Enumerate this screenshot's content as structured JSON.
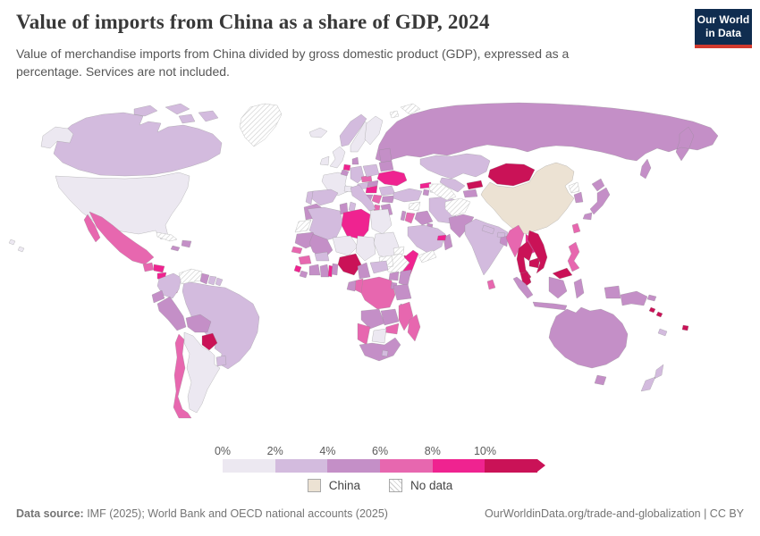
{
  "header": {
    "title": "Value of imports from China as a share of GDP, 2024",
    "subtitle": "Value of merchandise imports from China divided by gross domestic product (GDP), expressed as a percentage. Services are not included."
  },
  "logo": {
    "line1": "Our World",
    "line2": "in Data",
    "bg_color": "#102d50",
    "stripe_color": "#d23a2e"
  },
  "legend": {
    "tick_labels": [
      "0%",
      "2%",
      "4%",
      "6%",
      "8%",
      "10%"
    ],
    "band_colors": [
      "#ece8f1",
      "#d3bbde",
      "#c48fc7",
      "#e767af",
      "#ef2390",
      "#ca1257"
    ],
    "china_label": "China",
    "china_color": "#ece2d3",
    "nodata_label": "No data"
  },
  "footer": {
    "source_label": "Data source:",
    "source_text": " IMF (2025); World Bank and OECD national accounts (2025)",
    "right_text": "OurWorldinData.org/trade-and-globalization | CC BY"
  },
  "chart_data": {
    "type": "heatmap",
    "map_type": "world-choropleth",
    "title": "Value of imports from China as a share of GDP, 2024",
    "unit": "share of GDP (%)",
    "bins": [
      "0–2%",
      "2–4%",
      "4–6%",
      "6–8%",
      "8–10%",
      "10%+"
    ],
    "bin_keys": [
      "b0",
      "b1",
      "b2",
      "b3",
      "b4",
      "b5"
    ],
    "special_keys": {
      "china": "China (reference country)",
      "nodata": "No data"
    },
    "countries": {
      "greenland": "nodata",
      "canada": "b1",
      "alaska": "b0",
      "usa": "b0",
      "mexico": "b3",
      "guatemala": "b3",
      "honduras": "b4",
      "nicaragua": "b4",
      "costarica": "b2",
      "panama": "b3",
      "cuba": "nodata",
      "jamaica": "b2",
      "hispaniola": "b2",
      "colombia": "b1",
      "venezuela": "nodata",
      "guyana": "b2",
      "suriname": "b1",
      "frguiana": "b1",
      "ecuador": "b2",
      "peru": "b2",
      "brazil": "b1",
      "bolivia": "b2",
      "paraguay": "b5",
      "uruguay": "b1",
      "argentina": "b0",
      "chile": "b3",
      "iceland": "b0",
      "uk": "b0",
      "ireland": "b0",
      "norway": "b1",
      "sweden": "b0",
      "finland": "b0",
      "denmark": "b2",
      "baltics": "b2",
      "france": "b0",
      "spain": "b1",
      "portugal": "b1",
      "belgium": "b2",
      "netherlands": "b4",
      "germany": "b1",
      "switzerland": "b0",
      "austria": "b1",
      "czechia": "b3",
      "poland": "b1",
      "belarus": "b2",
      "ukraine": "b4",
      "slovakia": "b2",
      "hungary": "b4",
      "romania": "b1",
      "serbia": "b3",
      "bosnia": "b2",
      "bulgaria": "b2",
      "albania": "b3",
      "greece": "b2",
      "italy": "b1",
      "sicily": "b1",
      "sardinia": "b1",
      "russia": "b2",
      "svalbard": "nodata",
      "turkey": "b1",
      "georgia": "b4",
      "azerbaijan": "b0",
      "armenia": "b2",
      "syria": "nodata",
      "israel": "b2",
      "jordan": "b3",
      "iraq": "b2",
      "iran": "b1",
      "kuwait": "b2",
      "saudi": "b1",
      "yemen": "nodata",
      "oman": "b2",
      "uae": "b4",
      "kazakhstan": "b1",
      "uzbekistan": "b1",
      "turkmenistan": "nodata",
      "kyrgyzstan": "b5",
      "tajikistan": "b2",
      "afghanistan": "nodata",
      "pakistan": "b2",
      "india": "b1",
      "nepal": "b1",
      "bhutan": "b1",
      "bangladesh": "b2",
      "srilanka": "b3",
      "mongolia": "b5",
      "china": "china",
      "northkorea": "nodata",
      "southkorea": "b2",
      "japan": "b2",
      "taiwan": "b3",
      "myanmar": "b3",
      "thailand": "b5",
      "laos": "b4",
      "cambodia": "b5",
      "vietnam": "b5",
      "malaysia": "b5",
      "indonesia": "b2",
      "philippines": "b3",
      "png": "b2",
      "solomon": "b5",
      "fiji": "b5",
      "newcaledonia": "b1",
      "australia": "b2",
      "newzealand": "b1",
      "hawaii": "b0",
      "morocco": "b2",
      "wsahara": "nodata",
      "algeria": "b1",
      "tunisia": "b2",
      "libya": "b4",
      "egypt": "b0",
      "mauritania": "b2",
      "mali": "b2",
      "niger": "b0",
      "chad": "b0",
      "sudan": "b0",
      "ssudan": "nodata",
      "eritrea": "nodata",
      "djibouti": "b5",
      "ethiopia": "nodata",
      "somalia": "b4",
      "senegal": "b3",
      "guinea": "b3",
      "sierraleone": "b4",
      "liberia": "b2",
      "ivorycoast": "b2",
      "burkina": "b1",
      "ghana": "b2",
      "togo": "b4",
      "benin": "b2",
      "nigeria": "b5",
      "cameroon": "b2",
      "car": "b1",
      "drc": "b3",
      "congo": "b3",
      "gabon": "b2",
      "uganda": "b2",
      "kenya": "b2",
      "rwanda": "b2",
      "tanzania": "b2",
      "angola": "b2",
      "zambia": "b2",
      "malawi": "b2",
      "mozambique": "b3",
      "zimbabwe": "b3",
      "botswana": "b0",
      "namibia": "b3",
      "southafrica": "b2",
      "lesotho": "b1",
      "madagascar": "b3"
    }
  }
}
